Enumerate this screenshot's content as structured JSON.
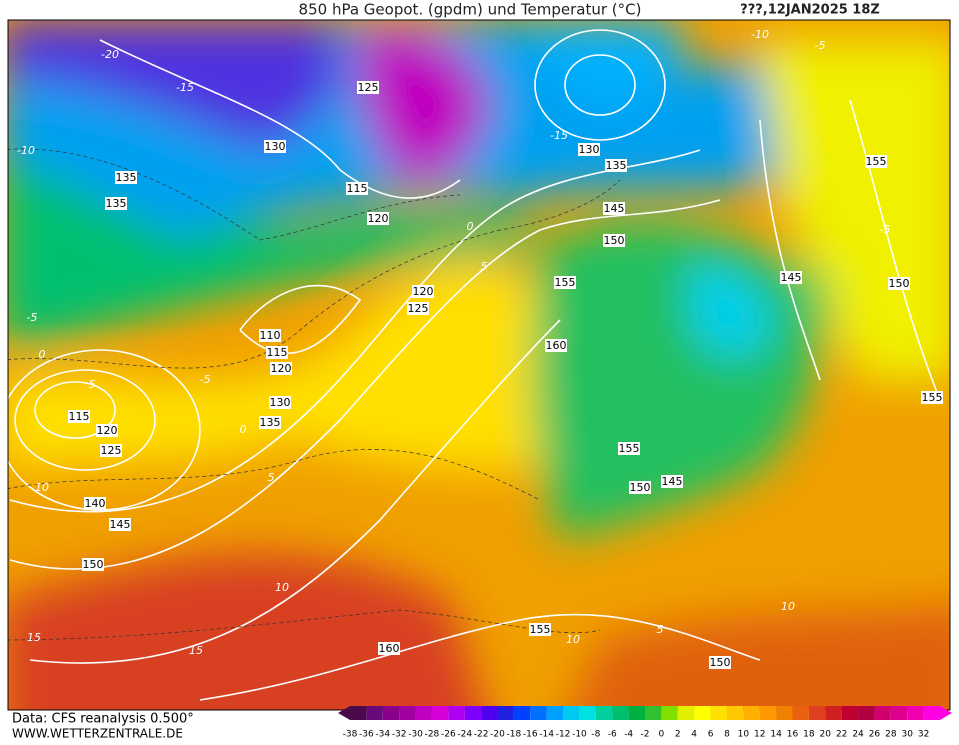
{
  "header": {
    "title": "850 hPa Geopot. (gpdm) und Temperatur (°C)",
    "date": "???,12JAN2025 18Z"
  },
  "map": {
    "geopotential_labels": [
      125,
      130,
      135,
      135,
      115,
      120,
      120,
      125,
      110,
      115,
      120,
      130,
      135,
      115,
      120,
      125,
      140,
      145,
      150,
      160,
      155,
      150,
      130,
      135,
      145,
      150,
      155,
      160,
      155,
      150,
      145,
      145,
      155,
      150,
      155
    ],
    "temperature_labels": [
      -20,
      -15,
      -10,
      -5,
      0,
      5,
      -5,
      0,
      5,
      10,
      10,
      15,
      15,
      10,
      5,
      10,
      -15,
      -5,
      -10,
      -5,
      0,
      5
    ]
  },
  "footer": {
    "source": "Data: CFS reanalysis 0.500°",
    "site": "WWW.WETTERZENTRALE.DE"
  },
  "scale": {
    "values": [
      -38,
      -36,
      -34,
      -32,
      -30,
      -28,
      -26,
      -24,
      -22,
      -20,
      -18,
      -16,
      -14,
      -12,
      -10,
      -8,
      -6,
      -4,
      -2,
      0,
      2,
      4,
      6,
      8,
      10,
      12,
      14,
      16,
      18,
      20,
      22,
      24,
      26,
      28,
      30,
      32
    ],
    "colors": [
      "#4b0a4b",
      "#6a0a7a",
      "#8a008a",
      "#a000a0",
      "#c000c0",
      "#d800d8",
      "#b000f0",
      "#8000ff",
      "#5000f0",
      "#2020e0",
      "#0040ff",
      "#0070ff",
      "#00a0ff",
      "#00c8f0",
      "#00e0e0",
      "#00d0a0",
      "#00c070",
      "#00b040",
      "#30c030",
      "#80e000",
      "#e0f000",
      "#ffff00",
      "#ffe000",
      "#ffc800",
      "#ffb000",
      "#ff9800",
      "#f08000",
      "#e86010",
      "#e04020",
      "#d02020",
      "#c00030",
      "#b00040",
      "#d00070",
      "#e00090",
      "#f000b0",
      "#ff00e0"
    ]
  }
}
